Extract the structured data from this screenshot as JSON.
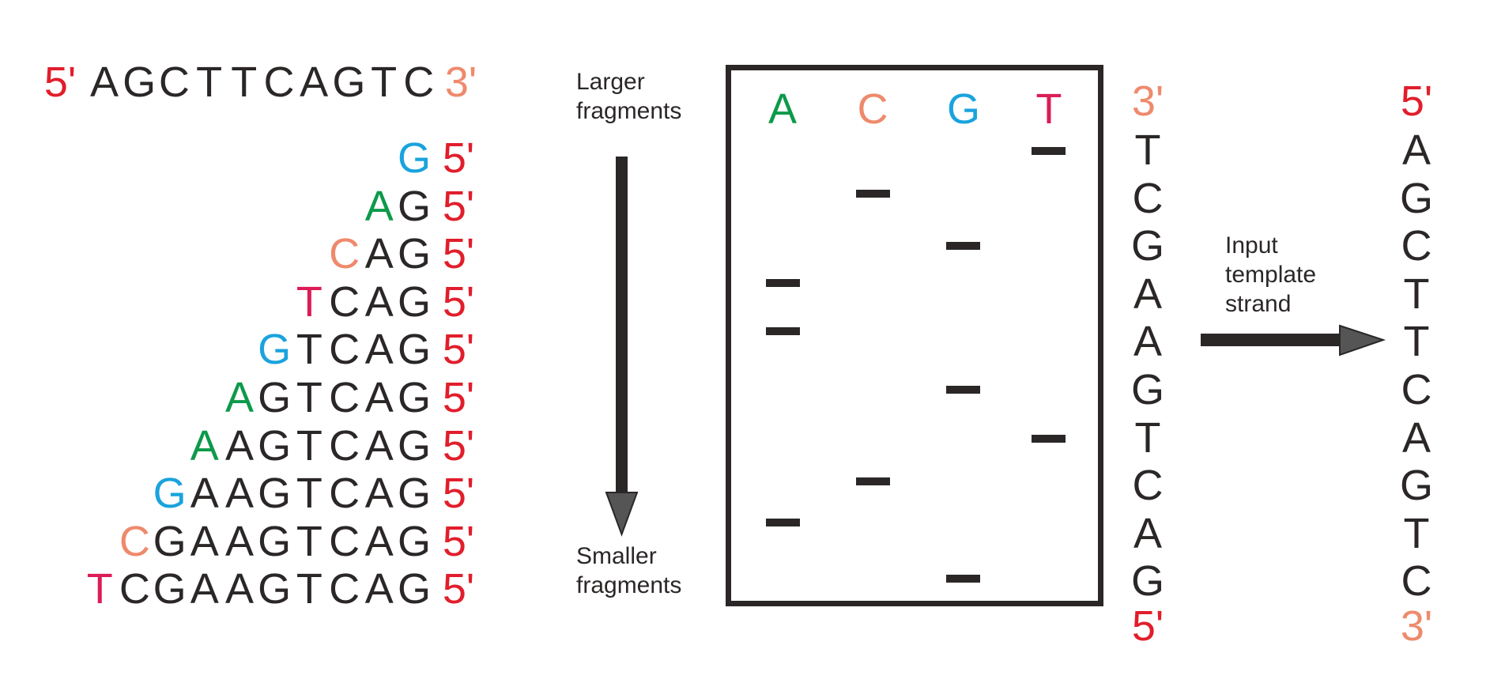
{
  "colors": {
    "A": "#0c9a4a",
    "C": "#ee8a6c",
    "G": "#1aa3dd",
    "T": "#dc1c56",
    "five_prime": "#e11e2b",
    "three_prime": "#ee8a6c",
    "dark": "#2b2727"
  },
  "template": {
    "left_end": "5'",
    "bases": [
      "A",
      "G",
      "C",
      "T",
      "T",
      "C",
      "A",
      "G",
      "T",
      "C"
    ],
    "right_end": "3'"
  },
  "fragments": {
    "end_label": "5'",
    "rows": [
      [
        "G"
      ],
      [
        "A",
        "G"
      ],
      [
        "C",
        "A",
        "G"
      ],
      [
        "T",
        "C",
        "A",
        "G"
      ],
      [
        "G",
        "T",
        "C",
        "A",
        "G"
      ],
      [
        "A",
        "G",
        "T",
        "C",
        "A",
        "G"
      ],
      [
        "A",
        "A",
        "G",
        "T",
        "C",
        "A",
        "G"
      ],
      [
        "G",
        "A",
        "A",
        "G",
        "T",
        "C",
        "A",
        "G"
      ],
      [
        "C",
        "G",
        "A",
        "A",
        "G",
        "T",
        "C",
        "A",
        "G"
      ],
      [
        "T",
        "C",
        "G",
        "A",
        "A",
        "G",
        "T",
        "C",
        "A",
        "G"
      ]
    ]
  },
  "labels": {
    "larger": [
      "Larger",
      "fragments"
    ],
    "smaller": [
      "Smaller",
      "fragments"
    ],
    "input": [
      "Input",
      "template",
      "strand"
    ]
  },
  "gel": {
    "lanes": [
      "A",
      "C",
      "G",
      "T"
    ],
    "bands_top_to_bottom": [
      "T",
      "C",
      "G",
      "A",
      "A",
      "G",
      "T",
      "C",
      "A",
      "G"
    ]
  },
  "read_sequence": {
    "top": "3'",
    "bases": [
      "T",
      "C",
      "G",
      "A",
      "A",
      "G",
      "T",
      "C",
      "A",
      "G"
    ],
    "bottom": "5'"
  },
  "template_strand": {
    "top": "5'",
    "bases": [
      "A",
      "G",
      "C",
      "T",
      "T",
      "C",
      "A",
      "G",
      "T",
      "C"
    ],
    "bottom": "3'"
  }
}
